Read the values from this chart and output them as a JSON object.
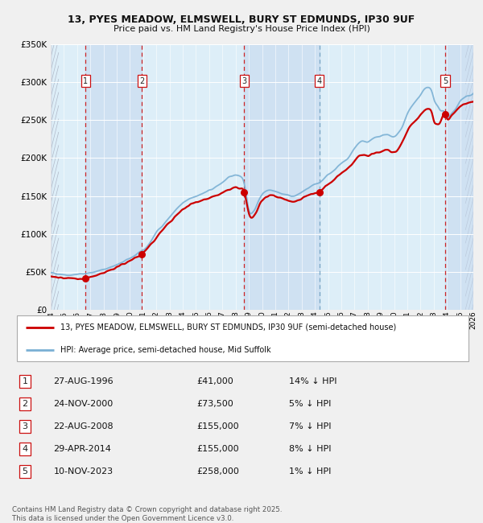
{
  "title1": "13, PYES MEADOW, ELMSWELL, BURY ST EDMUNDS, IP30 9UF",
  "title2": "Price paid vs. HM Land Registry's House Price Index (HPI)",
  "legend_line1": "13, PYES MEADOW, ELMSWELL, BURY ST EDMUNDS, IP30 9UF (semi-detached house)",
  "legend_line2": "HPI: Average price, semi-detached house, Mid Suffolk",
  "footer": "Contains HM Land Registry data © Crown copyright and database right 2025.\nThis data is licensed under the Open Government Licence v3.0.",
  "sales": [
    {
      "num": 1,
      "date": "27-AUG-1996",
      "price": 41000,
      "hpi_diff": "14% ↓ HPI",
      "year": 1996.65
    },
    {
      "num": 2,
      "date": "24-NOV-2000",
      "price": 73500,
      "hpi_diff": "5% ↓ HPI",
      "year": 2000.9
    },
    {
      "num": 3,
      "date": "22-AUG-2008",
      "price": 155000,
      "hpi_diff": "7% ↓ HPI",
      "year": 2008.65
    },
    {
      "num": 4,
      "date": "29-APR-2014",
      "price": 155000,
      "hpi_diff": "8% ↓ HPI",
      "year": 2014.33
    },
    {
      "num": 5,
      "date": "10-NOV-2023",
      "price": 258000,
      "hpi_diff": "1% ↓ HPI",
      "year": 2023.87
    }
  ],
  "xmin": 1994,
  "xmax": 2026,
  "ymin": 0,
  "ymax": 350000,
  "yticks": [
    0,
    50000,
    100000,
    150000,
    200000,
    250000,
    300000,
    350000
  ],
  "ytick_labels": [
    "£0",
    "£50K",
    "£100K",
    "£150K",
    "£200K",
    "£250K",
    "£300K",
    "£350K"
  ],
  "hpi_color": "#7ab0d4",
  "price_color": "#cc0000",
  "plot_bg": "#ddeef8",
  "white": "#ffffff",
  "fig_bg": "#f0f0f0"
}
